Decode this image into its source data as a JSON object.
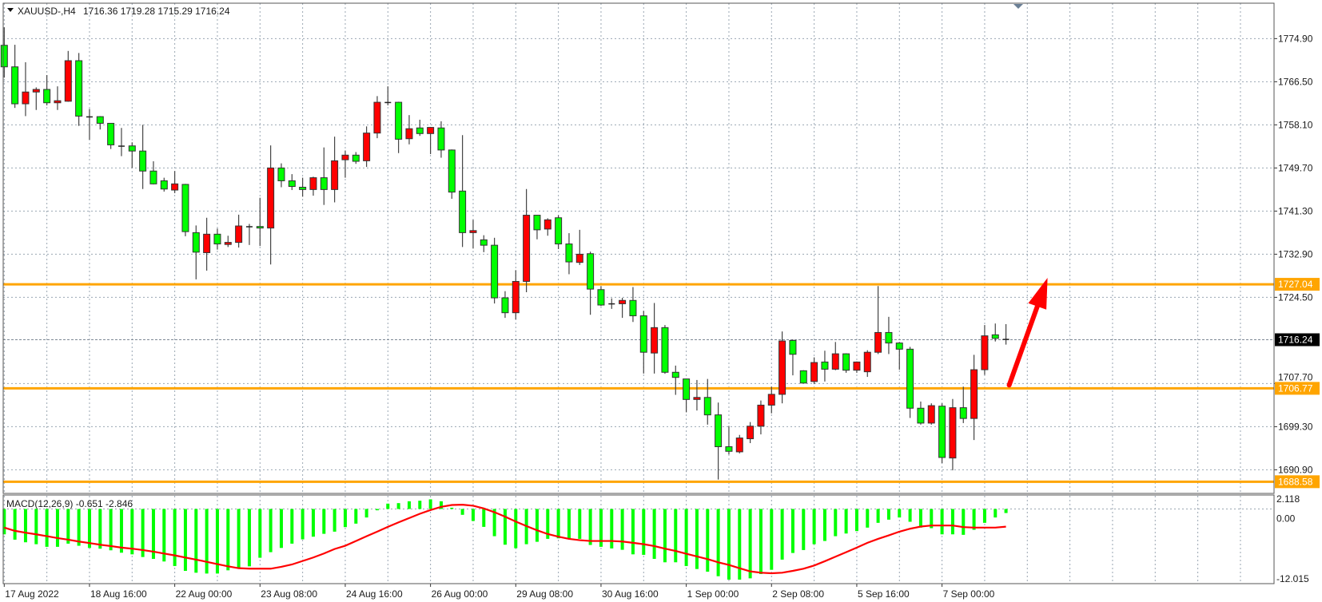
{
  "header": {
    "menu_icon": "triangle-down-icon",
    "symbol": "XAUUSD-,H4",
    "ohlc": "1716.36 1719.28 1715.29 1716.24"
  },
  "colors": {
    "background": "#ffffff",
    "grid": "#9aa6b2",
    "bull_candle": "#ff0000",
    "bear_candle": "#00ff00",
    "candle_outline": "#333333",
    "level_line": "#ffa500",
    "current_price_label_bg": "#000000",
    "macd_histogram": "#00ff00",
    "macd_signal": "#ff0000",
    "annotation_arrow": "#ff0000",
    "chart_shift_marker": "#6a7f95"
  },
  "chart_data": [
    {
      "type": "candlestick",
      "title": "XAUUSD-,H4",
      "ylim": [
        1686.3,
        1781.8
      ],
      "grid": true,
      "y_tick_labels": [
        "1774.90",
        "1766.50",
        "1758.10",
        "1749.70",
        "1741.30",
        "1732.90",
        "1724.50",
        "1707.70",
        "1699.30",
        "1690.90"
      ],
      "x_tick_labels": [
        {
          "bar": 0,
          "label": "17 Aug 2022"
        },
        {
          "bar": 8,
          "label": "18 Aug 16:00"
        },
        {
          "bar": 16,
          "label": "22 Aug 00:00"
        },
        {
          "bar": 24,
          "label": "23 Aug 08:00"
        },
        {
          "bar": 32,
          "label": "24 Aug 16:00"
        },
        {
          "bar": 40,
          "label": "26 Aug 00:00"
        },
        {
          "bar": 48,
          "label": "29 Aug 08:00"
        },
        {
          "bar": 56,
          "label": "30 Aug 16:00"
        },
        {
          "bar": 64,
          "label": "1 Sep 00:00"
        },
        {
          "bar": 72,
          "label": "2 Sep 08:00"
        },
        {
          "bar": 80,
          "label": "5 Sep 16:00"
        },
        {
          "bar": 88,
          "label": "7 Sep 00:00"
        }
      ],
      "ohlc_columns": [
        "open",
        "high",
        "low",
        "close"
      ],
      "ohlc": [
        [
          1773.6,
          1777.1,
          1767.3,
          1769.4
        ],
        [
          1769.4,
          1773.7,
          1761.4,
          1762.2
        ],
        [
          1762.2,
          1770.3,
          1759.8,
          1764.5
        ],
        [
          1764.5,
          1765.4,
          1761.0,
          1765.0
        ],
        [
          1765.0,
          1767.8,
          1761.9,
          1762.4
        ],
        [
          1762.4,
          1765.6,
          1761.0,
          1762.8
        ],
        [
          1762.7,
          1772.5,
          1762.6,
          1770.6
        ],
        [
          1770.6,
          1772.1,
          1757.9,
          1759.8
        ],
        [
          1759.7,
          1761.2,
          1755.2,
          1759.6
        ],
        [
          1759.7,
          1759.8,
          1757.2,
          1758.4
        ],
        [
          1758.4,
          1758.4,
          1753.4,
          1754.2
        ],
        [
          1754.0,
          1757.5,
          1752.0,
          1753.9
        ],
        [
          1754.0,
          1754.7,
          1749.7,
          1753.0
        ],
        [
          1753.0,
          1758.1,
          1745.6,
          1749.1
        ],
        [
          1749.1,
          1751.0,
          1746.5,
          1746.6
        ],
        [
          1747.2,
          1747.8,
          1745.1,
          1745.6
        ],
        [
          1745.4,
          1749.1,
          1744.8,
          1746.6
        ],
        [
          1746.5,
          1746.6,
          1736.4,
          1737.3
        ],
        [
          1737.1,
          1738.5,
          1728.0,
          1733.3
        ],
        [
          1733.2,
          1740.0,
          1729.7,
          1736.8
        ],
        [
          1736.8,
          1737.9,
          1733.8,
          1734.9
        ],
        [
          1734.8,
          1736.5,
          1734.3,
          1735.2
        ],
        [
          1735.2,
          1740.6,
          1734.2,
          1738.4
        ],
        [
          1738.3,
          1738.8,
          1734.7,
          1738.2
        ],
        [
          1738.3,
          1743.9,
          1734.5,
          1738.0
        ],
        [
          1738.0,
          1754.1,
          1730.9,
          1749.7
        ],
        [
          1749.7,
          1750.6,
          1745.95,
          1747.2
        ],
        [
          1747.2,
          1748.5,
          1745.4,
          1746.1
        ],
        [
          1745.95,
          1747.8,
          1744.1,
          1745.5
        ],
        [
          1745.5,
          1748.0,
          1744.3,
          1747.8
        ],
        [
          1747.8,
          1753.7,
          1742.5,
          1745.5
        ],
        [
          1745.5,
          1755.8,
          1743.0,
          1751.1
        ],
        [
          1751.3,
          1753.1,
          1747.8,
          1752.2
        ],
        [
          1752.2,
          1752.8,
          1750.5,
          1751.0
        ],
        [
          1751.1,
          1757.8,
          1749.9,
          1756.5
        ],
        [
          1756.5,
          1763.7,
          1755.5,
          1762.5
        ],
        [
          1762.5,
          1765.6,
          1761.9,
          1762.4
        ],
        [
          1762.5,
          1762.6,
          1752.6,
          1755.3
        ],
        [
          1755.4,
          1760.0,
          1754.3,
          1757.35
        ],
        [
          1757.5,
          1759.1,
          1755.95,
          1756.4
        ],
        [
          1756.4,
          1757.7,
          1752.4,
          1757.6
        ],
        [
          1757.5,
          1758.8,
          1751.7,
          1753.2
        ],
        [
          1753.2,
          1753.3,
          1743.7,
          1745.0
        ],
        [
          1745.2,
          1756.1,
          1734.3,
          1737.1
        ],
        [
          1737.1,
          1739.6,
          1734.0,
          1737.5
        ],
        [
          1735.7,
          1736.6,
          1733.3,
          1734.65
        ],
        [
          1734.65,
          1736.1,
          1723.3,
          1724.4
        ],
        [
          1724.4,
          1725.7,
          1720.5,
          1721.5
        ],
        [
          1721.5,
          1729.8,
          1720.2,
          1727.6
        ],
        [
          1727.6,
          1745.6,
          1725.5,
          1740.5
        ],
        [
          1740.5,
          1740.55,
          1735.8,
          1737.65
        ],
        [
          1737.8,
          1739.9,
          1736.5,
          1739.6
        ],
        [
          1740.0,
          1740.5,
          1733.9,
          1734.9
        ],
        [
          1734.9,
          1737.0,
          1729.0,
          1731.4
        ],
        [
          1731.3,
          1737.65,
          1730.8,
          1732.9
        ],
        [
          1733.0,
          1733.4,
          1721.1,
          1726.1
        ],
        [
          1726.0,
          1726.7,
          1722.8,
          1723.0
        ],
        [
          1723.25,
          1724.3,
          1722.25,
          1723.2
        ],
        [
          1723.25,
          1724.4,
          1720.5,
          1723.9
        ],
        [
          1723.9,
          1726.5,
          1719.7,
          1720.9
        ],
        [
          1720.9,
          1721.85,
          1709.65,
          1713.8
        ],
        [
          1713.65,
          1723.4,
          1709.65,
          1718.6
        ],
        [
          1718.6,
          1719.1,
          1709.6,
          1709.9
        ],
        [
          1709.9,
          1711.2,
          1705.5,
          1708.9
        ],
        [
          1708.6,
          1708.6,
          1702.1,
          1704.6
        ],
        [
          1704.6,
          1708.4,
          1702.45,
          1705.0
        ],
        [
          1705.0,
          1708.6,
          1699.7,
          1701.6
        ],
        [
          1701.6,
          1704.0,
          1689.0,
          1695.4
        ],
        [
          1695.4,
          1699.45,
          1693.9,
          1694.5
        ],
        [
          1694.4,
          1697.7,
          1694.1,
          1697.1
        ],
        [
          1696.95,
          1700.2,
          1696.1,
          1699.4
        ],
        [
          1699.4,
          1704.4,
          1697.8,
          1703.5
        ],
        [
          1703.5,
          1707.1,
          1701.9,
          1705.6
        ],
        [
          1705.6,
          1717.85,
          1703.85,
          1716.0
        ],
        [
          1716.1,
          1716.3,
          1709.3,
          1713.4
        ],
        [
          1710.2,
          1710.3,
          1707.75,
          1707.8
        ],
        [
          1708.1,
          1712.8,
          1707.6,
          1711.8
        ],
        [
          1711.9,
          1714.1,
          1708.1,
          1710.5
        ],
        [
          1710.5,
          1715.8,
          1710.3,
          1713.5
        ],
        [
          1713.5,
          1713.6,
          1709.8,
          1710.3
        ],
        [
          1710.3,
          1712.0,
          1709.8,
          1711.9
        ],
        [
          1710.0,
          1714.2,
          1709.0,
          1713.8
        ],
        [
          1713.8,
          1726.7,
          1713.45,
          1717.65
        ],
        [
          1717.65,
          1720.7,
          1713.45,
          1715.6
        ],
        [
          1715.6,
          1715.8,
          1710.4,
          1714.4
        ],
        [
          1714.4,
          1714.85,
          1701.0,
          1702.9
        ],
        [
          1702.9,
          1704.2,
          1699.7,
          1700.0
        ],
        [
          1700.0,
          1703.85,
          1699.7,
          1703.4
        ],
        [
          1703.3,
          1703.85,
          1692.2,
          1693.3
        ],
        [
          1693.2,
          1704.7,
          1690.8,
          1703.0
        ],
        [
          1703.0,
          1707.1,
          1700.0,
          1700.9
        ],
        [
          1700.9,
          1713.3,
          1696.7,
          1710.4
        ],
        [
          1710.4,
          1719.1,
          1709.4,
          1717.0
        ],
        [
          1717.2,
          1719.4,
          1715.9,
          1716.5
        ],
        [
          1716.36,
          1719.28,
          1715.29,
          1716.24
        ]
      ],
      "current_price": {
        "value": 1716.24,
        "label": "1716.24"
      },
      "horizontal_lines": [
        {
          "price": 1727.04,
          "label": "1727.04"
        },
        {
          "price": 1706.77,
          "label": "1706.77"
        },
        {
          "price": 1688.58,
          "label": "1688.58"
        }
      ],
      "annotations": [
        {
          "type": "arrow",
          "from": {
            "bar": 94.3,
            "price": 1707.4
          },
          "to": {
            "bar": 97.9,
            "price": 1728.3
          }
        }
      ]
    },
    {
      "type": "bar+line",
      "title": "MACD(12,26,9) -0.651 -2.846",
      "ylim": [
        -12.015,
        2.118
      ],
      "y_tick_labels": [
        "2.118",
        "0.00",
        "-12.015"
      ],
      "histogram": [
        -4.08,
        -4.94,
        -5.36,
        -5.67,
        -6.09,
        -6.09,
        -5.58,
        -5.92,
        -6.27,
        -6.39,
        -6.65,
        -7.04,
        -7.3,
        -7.73,
        -8.03,
        -8.45,
        -9.18,
        -9.96,
        -10.26,
        -10.39,
        -10.39,
        -9.87,
        -9.44,
        -9.23,
        -7.85,
        -6.95,
        -6.27,
        -5.58,
        -4.89,
        -4.46,
        -4.0,
        -3.65,
        -2.92,
        -2.36,
        -1.37,
        -0.21,
        0.86,
        0.94,
        1.24,
        1.33,
        1.55,
        1.24,
        0.2,
        -0.94,
        -1.93,
        -2.88,
        -4.38,
        -5.75,
        -6.31,
        -5.67,
        -5.28,
        -4.81,
        -4.72,
        -4.72,
        -4.81,
        -5.79,
        -6.09,
        -6.35,
        -6.57,
        -7.3,
        -7.38,
        -8.03,
        -8.58,
        -8.58,
        -9.18,
        -9.66,
        -10.09,
        -10.82,
        -11.37,
        -11.37,
        -11.16,
        -10.47,
        -9.79,
        -8.15,
        -7.08,
        -6.61,
        -5.67,
        -5.15,
        -4.38,
        -3.95,
        -3.56,
        -3.0,
        -2.23,
        -1.72,
        -1.37,
        -2.06,
        -3.0,
        -3.09,
        -4.08,
        -4.08,
        -4.16,
        -3.35,
        -2.23,
        -1.37,
        -0.651
      ],
      "signal": [
        -3.0,
        -3.52,
        -3.82,
        -4.08,
        -4.38,
        -4.68,
        -4.94,
        -5.24,
        -5.49,
        -5.75,
        -5.97,
        -6.22,
        -6.39,
        -6.61,
        -6.87,
        -7.17,
        -7.47,
        -7.81,
        -8.15,
        -8.5,
        -8.88,
        -9.23,
        -9.53,
        -9.61,
        -9.61,
        -9.61,
        -9.31,
        -8.93,
        -8.37,
        -7.81,
        -7.17,
        -6.44,
        -5.92,
        -5.15,
        -4.38,
        -3.65,
        -2.88,
        -2.15,
        -1.46,
        -0.77,
        -0.17,
        0.34,
        0.64,
        0.69,
        0.52,
        0.09,
        -0.52,
        -1.24,
        -2.02,
        -2.75,
        -3.43,
        -4.03,
        -4.46,
        -4.81,
        -5.02,
        -5.15,
        -5.15,
        -5.15,
        -5.24,
        -5.45,
        -5.67,
        -5.97,
        -6.39,
        -6.76,
        -7.21,
        -7.64,
        -8.07,
        -8.58,
        -9.01,
        -9.53,
        -10.04,
        -10.26,
        -10.34,
        -10.26,
        -9.96,
        -9.61,
        -9.1,
        -8.41,
        -7.68,
        -6.95,
        -6.22,
        -5.45,
        -4.81,
        -4.25,
        -3.65,
        -3.18,
        -2.83,
        -2.66,
        -2.66,
        -2.66,
        -2.92,
        -3.0,
        -3.0,
        -3.0,
        -2.846
      ]
    }
  ]
}
